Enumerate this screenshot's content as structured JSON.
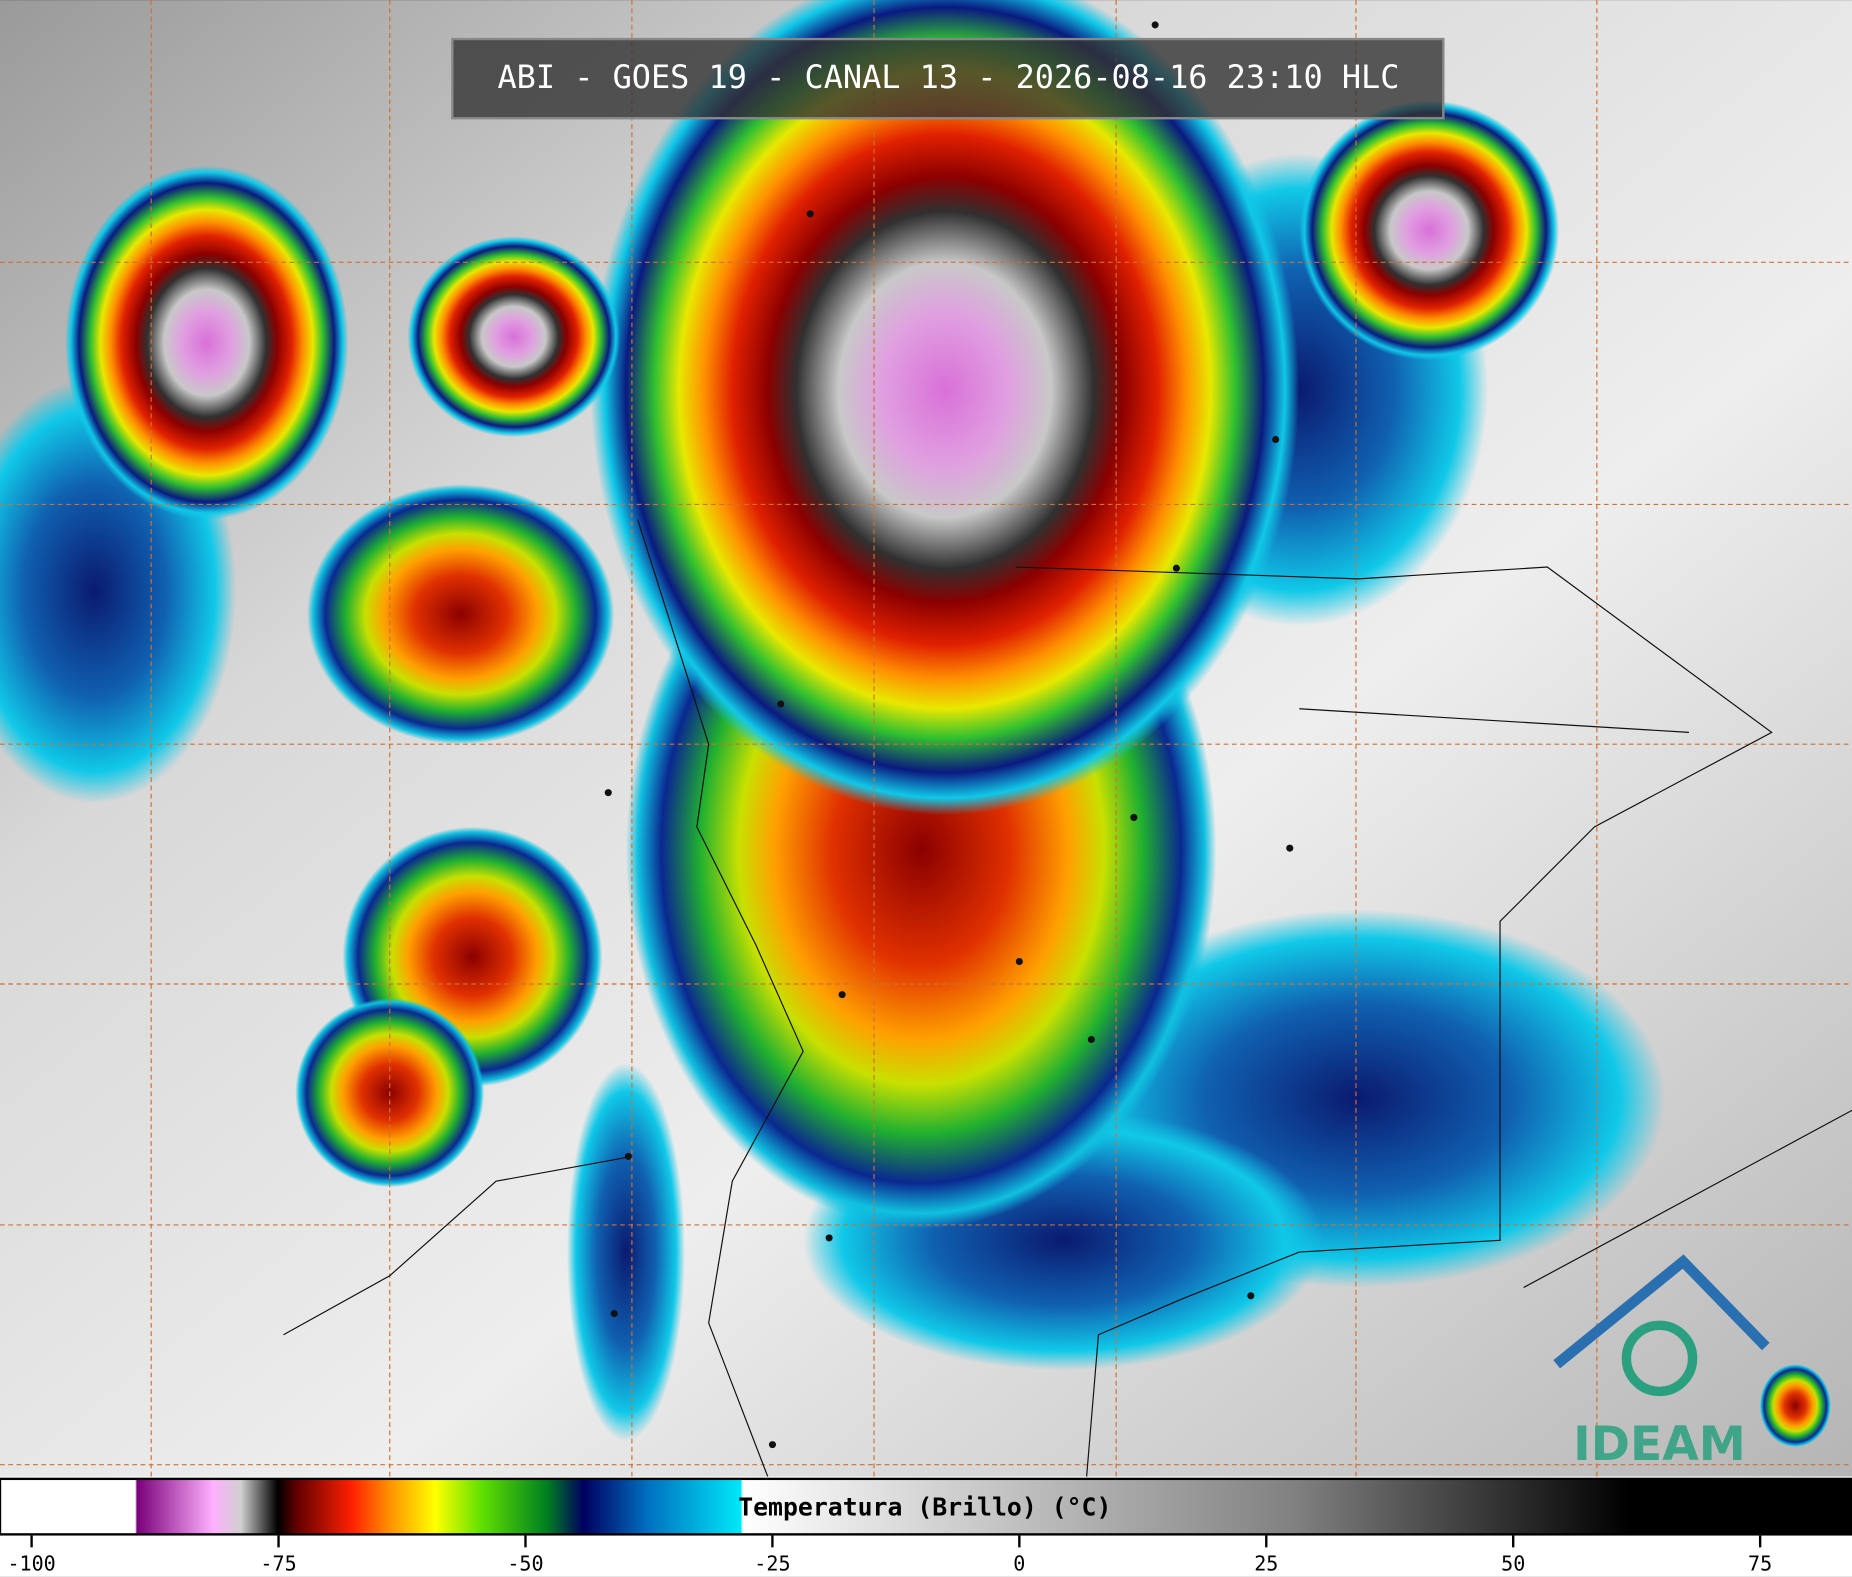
{
  "title": "ABI - GOES 19 - CANAL 13 - 2026-08-16 23:10 HLC",
  "colorbar": {
    "label": "Temperatura (Brillo) (°C)",
    "lim": [
      -103.2,
      84.3
    ],
    "ticks": [
      -100,
      -75,
      -50,
      -25,
      0,
      25,
      50,
      75
    ]
  },
  "logo": "IDEAM"
}
